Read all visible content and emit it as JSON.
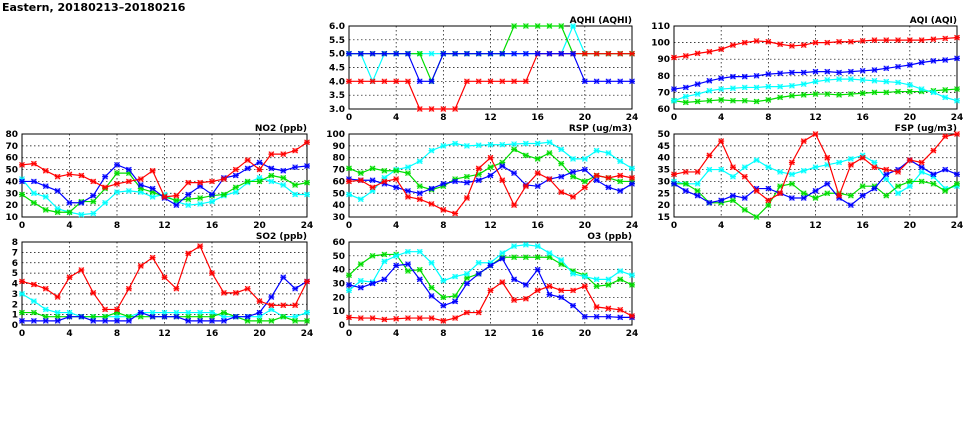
{
  "header": {
    "title": "Eastern, 20180213–20180216"
  },
  "chart_data": [
    {
      "type": "line",
      "title": "AQHI (AQHI)",
      "ylim": [
        3,
        6
      ],
      "yticks": [
        "3.0",
        "3.5",
        "4.0",
        "4.5",
        "5.0",
        "5.5",
        "6.0"
      ],
      "xlim": [
        0,
        24
      ],
      "xticks": [
        "0",
        "4",
        "8",
        "12",
        "16",
        "20",
        "24"
      ],
      "grid": true,
      "series": [
        {
          "color": "#00ffff",
          "values": [
            5,
            5,
            4,
            5,
            5,
            5,
            5,
            5,
            5,
            5,
            5,
            5,
            5,
            5,
            5,
            5,
            5,
            5,
            5,
            6,
            5,
            5,
            5,
            5,
            5
          ]
        },
        {
          "color": "#00dd00",
          "values": [
            5,
            5,
            5,
            5,
            5,
            5,
            5,
            4,
            5,
            5,
            5,
            5,
            5,
            5,
            6,
            6,
            6,
            6,
            6,
            5,
            5,
            5,
            5,
            5,
            5
          ]
        },
        {
          "color": "#ff0000",
          "values": [
            4,
            4,
            4,
            4,
            4,
            4,
            3,
            3,
            3,
            3,
            4,
            4,
            4,
            4,
            4,
            4,
            5,
            5,
            5,
            5,
            5,
            5,
            5,
            5,
            5
          ]
        },
        {
          "color": "#0000ff",
          "values": [
            5,
            5,
            5,
            5,
            5,
            5,
            4,
            4,
            5,
            5,
            5,
            5,
            5,
            5,
            5,
            5,
            5,
            5,
            5,
            5,
            4,
            4,
            4,
            4,
            4
          ]
        }
      ]
    },
    {
      "type": "line",
      "title": "AQI (AQI)",
      "ylim": [
        60,
        110
      ],
      "yticks": [
        "60",
        "70",
        "80",
        "90",
        "100",
        "110"
      ],
      "xlim": [
        0,
        24
      ],
      "xticks": [
        "0",
        "4",
        "8",
        "12",
        "16",
        "20",
        "24"
      ],
      "grid": true,
      "series": [
        {
          "color": "#00dd00",
          "values": [
            65,
            64,
            64.5,
            65,
            65.5,
            65,
            65,
            64.5,
            65.5,
            67,
            68,
            68.5,
            69,
            69,
            68.5,
            69,
            69.5,
            70,
            70,
            70.5,
            70.5,
            70.5,
            71,
            71.5,
            72
          ]
        },
        {
          "color": "#00ffff",
          "values": [
            65,
            67.5,
            69,
            71,
            72,
            72.5,
            73,
            73,
            73.5,
            73.5,
            74,
            75,
            76.5,
            77.5,
            78,
            78,
            77.5,
            77,
            76.5,
            76,
            74.5,
            72,
            70,
            67,
            65
          ]
        },
        {
          "color": "#0000ff",
          "values": [
            72,
            73,
            75,
            77,
            78.5,
            79.5,
            79.5,
            80,
            81,
            81.5,
            82,
            82,
            82.5,
            82.5,
            82,
            82.5,
            83,
            83.5,
            84.5,
            85.5,
            86.5,
            88,
            89,
            89.5,
            90.5
          ]
        },
        {
          "color": "#ff0000",
          "values": [
            91,
            92,
            93.5,
            94.5,
            96,
            98.5,
            100,
            101,
            100.5,
            99,
            98,
            98.5,
            100,
            100,
            100.5,
            100.5,
            101,
            101.5,
            101.5,
            101.5,
            101.5,
            101.5,
            102,
            102.5,
            103
          ]
        }
      ]
    },
    {
      "type": "line",
      "title": "NO2 (ppb)",
      "ylim": [
        10,
        80
      ],
      "yticks": [
        "10",
        "20",
        "30",
        "40",
        "50",
        "60",
        "70",
        "80"
      ],
      "xlim": [
        0,
        24
      ],
      "xticks": [
        "0",
        "4",
        "8",
        "12",
        "16",
        "20",
        "24"
      ],
      "grid": true,
      "series": [
        {
          "color": "#00ffff",
          "values": [
            42,
            30,
            27,
            17,
            14,
            12,
            13,
            22,
            31,
            32,
            31,
            27,
            29,
            23,
            20,
            21,
            23,
            28,
            31,
            39,
            43,
            40,
            37,
            29,
            29
          ]
        },
        {
          "color": "#00dd00",
          "values": [
            29,
            22,
            16,
            14,
            14,
            23,
            23,
            34,
            47,
            47,
            34,
            31,
            27,
            24,
            25,
            26,
            28,
            29,
            35,
            40,
            40,
            45,
            43,
            37,
            39
          ]
        },
        {
          "color": "#0000ff",
          "values": [
            40,
            40,
            36,
            32,
            22,
            22,
            28,
            44,
            54,
            50,
            37,
            34,
            26,
            20,
            29,
            36,
            29,
            43,
            45,
            51,
            56,
            51,
            49,
            52,
            53
          ]
        },
        {
          "color": "#ff0000",
          "values": [
            54,
            55,
            49,
            44,
            46,
            45,
            40,
            35,
            38,
            40,
            42,
            49,
            27,
            28,
            39,
            39,
            40,
            42,
            50,
            58,
            50,
            63,
            63,
            66,
            73
          ]
        }
      ]
    },
    {
      "type": "line",
      "title": "RSP (ug/m3)",
      "ylim": [
        30,
        100
      ],
      "yticks": [
        "30",
        "40",
        "50",
        "60",
        "70",
        "80",
        "90",
        "100"
      ],
      "xlim": [
        0,
        24
      ],
      "xticks": [
        "0",
        "4",
        "8",
        "12",
        "16",
        "20",
        "24"
      ],
      "grid": true,
      "series": [
        {
          "color": "#00ffff",
          "values": [
            49,
            45,
            52,
            63,
            70,
            72,
            77,
            86,
            90,
            92,
            90,
            90.5,
            91,
            91,
            91.5,
            92,
            92,
            93,
            87,
            79,
            79,
            86,
            84,
            77,
            71
          ]
        },
        {
          "color": "#00dd00",
          "values": [
            71,
            67,
            71,
            69,
            69,
            67,
            56,
            53,
            56,
            62,
            64,
            66,
            72,
            76,
            87,
            82,
            79,
            84,
            75,
            64,
            60,
            65,
            63,
            60,
            60
          ]
        },
        {
          "color": "#0000ff",
          "values": [
            62,
            61,
            61,
            58,
            55,
            52,
            50,
            54,
            58,
            60,
            59,
            61,
            65,
            73,
            67,
            57,
            56,
            62,
            64,
            68,
            70,
            61,
            55,
            52,
            58
          ]
        },
        {
          "color": "#ff0000",
          "values": [
            60,
            61,
            55,
            60,
            62,
            47,
            45,
            41,
            36,
            33,
            46,
            71,
            80,
            61,
            40,
            56,
            67,
            62,
            51,
            47,
            55,
            65,
            63,
            65,
            63
          ]
        }
      ]
    },
    {
      "type": "line",
      "title": "FSP (ug/m3)",
      "ylim": [
        15,
        50
      ],
      "yticks": [
        "15",
        "20",
        "25",
        "30",
        "35",
        "40",
        "45",
        "50"
      ],
      "xlim": [
        0,
        24
      ],
      "xticks": [
        "0",
        "4",
        "8",
        "12",
        "16",
        "20",
        "24"
      ],
      "grid": true,
      "series": [
        {
          "color": "#00ffff",
          "values": [
            30,
            29,
            29,
            35,
            35,
            32,
            36,
            39,
            36,
            34,
            33,
            34.5,
            36,
            37,
            38,
            39.5,
            41,
            38,
            31,
            25,
            28,
            34,
            32,
            27,
            28
          ]
        },
        {
          "color": "#00dd00",
          "values": [
            29,
            29,
            26,
            21,
            21,
            22,
            18,
            15,
            20,
            28,
            29,
            25,
            23,
            25,
            25,
            24,
            28,
            28,
            24,
            28,
            30,
            30,
            29,
            26,
            29
          ]
        },
        {
          "color": "#0000ff",
          "values": [
            29,
            26,
            24,
            21,
            22,
            24,
            23,
            27,
            27,
            25,
            23,
            23,
            26,
            29,
            23,
            20,
            24,
            27,
            33,
            35,
            39,
            36,
            33,
            35,
            33
          ]
        },
        {
          "color": "#ff0000",
          "values": [
            33,
            34,
            34,
            41,
            47,
            36,
            32,
            26,
            22,
            25,
            38,
            47,
            50,
            40,
            24,
            37,
            40,
            36,
            35,
            34,
            39,
            38,
            43,
            49,
            50
          ]
        }
      ]
    },
    {
      "type": "line",
      "title": "SO2 (ppb)",
      "ylim": [
        0,
        8
      ],
      "yticks": [
        "0",
        "1",
        "2",
        "3",
        "4",
        "5",
        "6",
        "7",
        "8"
      ],
      "xlim": [
        0,
        24
      ],
      "xticks": [
        "0",
        "4",
        "8",
        "12",
        "16",
        "20",
        "24"
      ],
      "grid": true,
      "series": [
        {
          "color": "#00ffff",
          "values": [
            3.0,
            2.3,
            1.5,
            1.2,
            1.2,
            0.8,
            0.8,
            0.8,
            0.8,
            0.8,
            1.2,
            1.2,
            1.2,
            1.2,
            1.2,
            1.2,
            1.2,
            0.8,
            0.8,
            0.8,
            0.8,
            1.5,
            0.8,
            0.8,
            1.2
          ]
        },
        {
          "color": "#00dd00",
          "values": [
            1.2,
            1.2,
            0.8,
            0.8,
            0.8,
            0.8,
            0.8,
            0.8,
            1.2,
            0.8,
            0.8,
            0.8,
            0.8,
            0.8,
            0.8,
            0.8,
            0.8,
            1.2,
            0.8,
            0.4,
            0.4,
            0.4,
            0.8,
            0.4,
            0.4
          ]
        },
        {
          "color": "#0000ff",
          "values": [
            0.4,
            0.4,
            0.4,
            0.4,
            0.8,
            0.8,
            0.4,
            0.4,
            0.4,
            0.4,
            1.2,
            0.8,
            0.8,
            0.8,
            0.4,
            0.4,
            0.4,
            0.4,
            0.8,
            0.8,
            1.2,
            2.7,
            4.6,
            3.5,
            4.2
          ]
        },
        {
          "color": "#ff0000",
          "values": [
            4.2,
            3.9,
            3.5,
            2.7,
            4.6,
            5.3,
            3.1,
            1.5,
            1.5,
            3.5,
            5.7,
            6.5,
            4.6,
            3.5,
            6.9,
            7.6,
            5.0,
            3.1,
            3.1,
            3.5,
            2.3,
            1.9,
            1.9,
            1.9,
            4.2
          ]
        }
      ]
    },
    {
      "type": "line",
      "title": "O3 (ppb)",
      "ylim": [
        0,
        60
      ],
      "yticks": [
        "0",
        "10",
        "20",
        "30",
        "40",
        "50",
        "60"
      ],
      "xlim": [
        0,
        24
      ],
      "xticks": [
        "0",
        "4",
        "8",
        "12",
        "16",
        "20",
        "24"
      ],
      "grid": true,
      "series": [
        {
          "color": "#00dd00",
          "values": [
            36,
            44,
            50,
            51,
            51,
            39,
            40,
            27,
            20,
            21,
            34,
            37,
            43,
            49,
            49,
            49,
            49,
            49,
            44,
            39,
            36,
            28,
            29,
            33,
            29
          ]
        },
        {
          "color": "#00ffff",
          "values": [
            25,
            32,
            31,
            46,
            50,
            53,
            53,
            45,
            32,
            35,
            37,
            45,
            45,
            52,
            57,
            58,
            57,
            52,
            47,
            37,
            35,
            33,
            33,
            39,
            36
          ]
        },
        {
          "color": "#0000ff",
          "values": [
            29,
            27,
            30,
            33,
            43,
            44,
            33,
            21,
            14,
            17,
            30,
            37,
            43,
            48,
            33,
            29,
            40,
            22,
            20,
            14,
            6,
            6,
            6,
            5.5,
            5.5
          ]
        },
        {
          "color": "#ff0000",
          "values": [
            5.5,
            5,
            5,
            4,
            4.5,
            5,
            5,
            5,
            3,
            5,
            9,
            9,
            25,
            31,
            18,
            19,
            25,
            28,
            25,
            25,
            28,
            13,
            12,
            11,
            6.5
          ]
        }
      ]
    }
  ]
}
